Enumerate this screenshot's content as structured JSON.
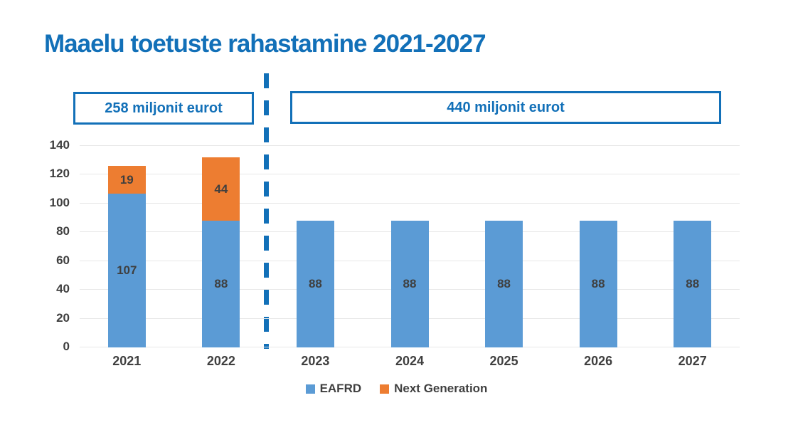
{
  "title": "Maaelu toetuste rahastamine 2021-2027",
  "annotations": {
    "left_box_label": "258 miljonit eurot",
    "right_box_label": "440 miljonit eurot"
  },
  "colors": {
    "accent_blue": "#1270b8",
    "eafrd_blue": "#5b9bd5",
    "next_generation_orange": "#ed7d31",
    "text_gray": "#3f3f3f",
    "gridline_gray": "#e7e7e7"
  },
  "chart_data": {
    "type": "bar",
    "stacked": true,
    "title": "Maaelu toetuste rahastamine 2021-2027",
    "categories": [
      "2021",
      "2022",
      "2023",
      "2024",
      "2025",
      "2026",
      "2027"
    ],
    "series": [
      {
        "name": "EAFRD",
        "color": "#5b9bd5",
        "values": [
          107,
          88,
          88,
          88,
          88,
          88,
          88
        ]
      },
      {
        "name": "Next Generation",
        "color": "#ed7d31",
        "values": [
          19,
          44,
          0,
          0,
          0,
          0,
          0
        ]
      }
    ],
    "totals": [
      126,
      132,
      88,
      88,
      88,
      88,
      88
    ],
    "yticks": [
      0,
      20,
      40,
      60,
      80,
      100,
      120,
      140
    ],
    "ylim": [
      0,
      140
    ],
    "xlabel": "",
    "ylabel": "",
    "grid": true,
    "legend_position": "bottom",
    "group_annotations": [
      {
        "text": "258 miljonit eurot",
        "span": [
          "2021",
          "2022"
        ]
      },
      {
        "text": "440 miljonit eurot",
        "span": [
          "2023",
          "2027"
        ]
      }
    ],
    "separator": {
      "between": [
        "2022",
        "2023"
      ],
      "style": "dashed-vertical-line"
    }
  }
}
